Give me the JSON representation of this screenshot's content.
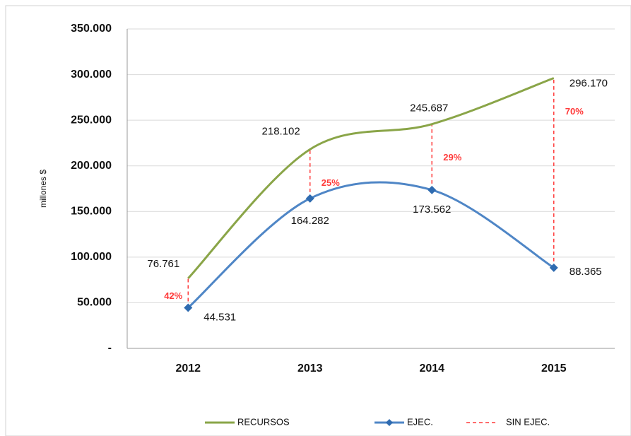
{
  "chart_data": {
    "type": "line",
    "y_label": "millones $",
    "categories": [
      "2012",
      "2013",
      "2014",
      "2015"
    ],
    "series": [
      {
        "name": "RECURSOS",
        "color": "#8aa548",
        "values": [
          76761,
          218102,
          245687,
          296170
        ],
        "value_labels": [
          "76.761",
          "218.102",
          "245.687",
          "296.170"
        ]
      },
      {
        "name": "EJEC.",
        "color": "#4f86c6",
        "values": [
          44531,
          164282,
          173562,
          88365
        ],
        "value_labels": [
          "44.531",
          "164.282",
          "173.562",
          "88.365"
        ]
      },
      {
        "name": "SIN EJEC.",
        "color": "#ff3b3b",
        "values": [
          42,
          25,
          29,
          70
        ],
        "value_labels": [
          "42%",
          "25%",
          "29%",
          "70%"
        ]
      }
    ],
    "ylim": [
      0,
      350000
    ],
    "yticks": [
      {
        "value": 0,
        "label": "-"
      },
      {
        "value": 50000,
        "label": "50.000"
      },
      {
        "value": 100000,
        "label": "100.000"
      },
      {
        "value": 150000,
        "label": "150.000"
      },
      {
        "value": 200000,
        "label": "200.000"
      },
      {
        "value": 250000,
        "label": "250.000"
      },
      {
        "value": 300000,
        "label": "300.000"
      },
      {
        "value": 350000,
        "label": "350.000"
      }
    ],
    "grid": true,
    "legend": "bottom"
  }
}
